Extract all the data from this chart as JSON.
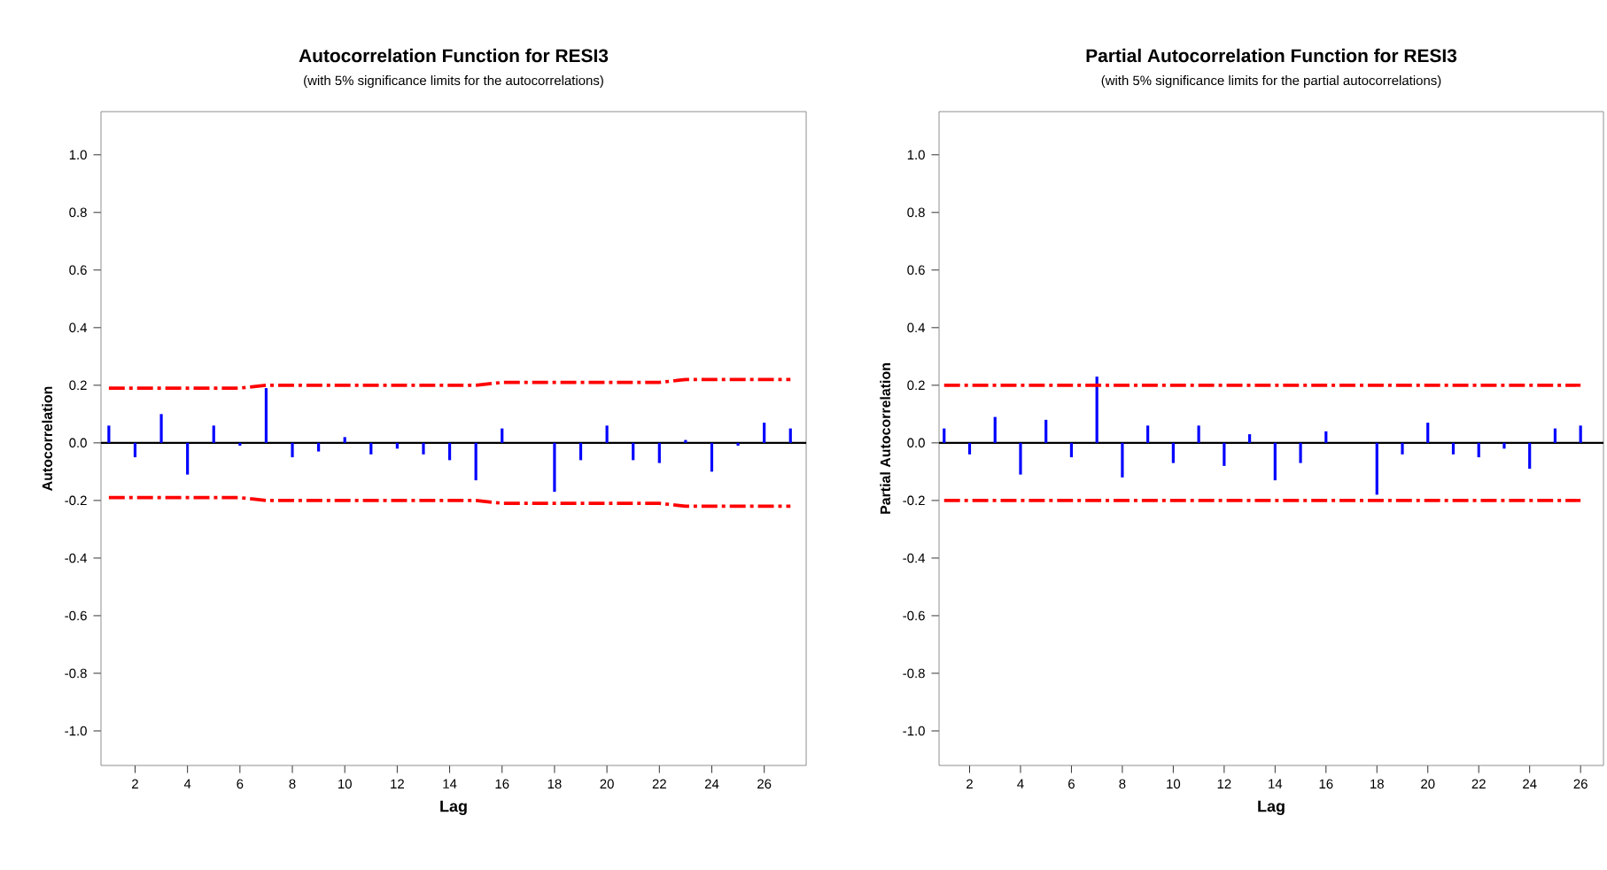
{
  "chart_data": [
    {
      "type": "bar",
      "title": "Autocorrelation Function for RESI3",
      "subtitle": "(with 5% significance limits for the autocorrelations)",
      "xlabel": "Lag",
      "ylabel": "Autocorrelation",
      "x": [
        1,
        2,
        3,
        4,
        5,
        6,
        7,
        8,
        9,
        10,
        11,
        12,
        13,
        14,
        15,
        16,
        17,
        18,
        19,
        20,
        21,
        22,
        23,
        24,
        25,
        26,
        27
      ],
      "series": [
        {
          "color": "#0000ff",
          "values": [
            0.06,
            -0.05,
            0.1,
            -0.11,
            0.06,
            -0.01,
            0.19,
            -0.05,
            -0.03,
            0.02,
            -0.04,
            -0.02,
            -0.04,
            -0.06,
            -0.13,
            0.05,
            0.0,
            -0.17,
            -0.06,
            0.06,
            -0.06,
            -0.07,
            0.01,
            -0.1,
            -0.01,
            0.07,
            0.05
          ]
        },
        {
          "type": "line",
          "color": "#ff0000",
          "line_style": "dashed",
          "values": [
            0.19,
            0.19,
            0.19,
            0.19,
            0.19,
            0.19,
            0.2,
            0.2,
            0.2,
            0.2,
            0.2,
            0.2,
            0.2,
            0.2,
            0.2,
            0.21,
            0.21,
            0.21,
            0.21,
            0.21,
            0.21,
            0.21,
            0.22,
            0.22,
            0.22,
            0.22,
            0.22
          ]
        },
        {
          "type": "line",
          "color": "#ff0000",
          "line_style": "dashed",
          "values": [
            -0.19,
            -0.19,
            -0.19,
            -0.19,
            -0.19,
            -0.19,
            -0.2,
            -0.2,
            -0.2,
            -0.2,
            -0.2,
            -0.2,
            -0.2,
            -0.2,
            -0.2,
            -0.21,
            -0.21,
            -0.21,
            -0.21,
            -0.21,
            -0.21,
            -0.21,
            -0.22,
            -0.22,
            -0.22,
            -0.22,
            -0.22
          ]
        }
      ],
      "ref_lines": [
        {
          "axis": "y",
          "value": 0,
          "color": "#000000"
        }
      ],
      "xlim": [
        0.7,
        27.6
      ],
      "xticks": [
        2,
        4,
        6,
        8,
        10,
        12,
        14,
        16,
        18,
        20,
        22,
        24,
        26
      ],
      "ylim": [
        -1.12,
        1.15
      ],
      "yticks": [
        {
          "value": -1,
          "label": "-1.0"
        },
        {
          "value": -0.8,
          "label": "-0.8"
        },
        {
          "value": -0.6,
          "label": "-0.6"
        },
        {
          "value": -0.4,
          "label": "-0.4"
        },
        {
          "value": -0.2,
          "label": "-0.2"
        },
        {
          "value": 0,
          "label": "0.0"
        },
        {
          "value": 0.2,
          "label": "0.2"
        },
        {
          "value": 0.4,
          "label": "0.4"
        },
        {
          "value": 0.6,
          "label": "0.6"
        },
        {
          "value": 0.8,
          "label": "0.8"
        },
        {
          "value": 1,
          "label": "1.0"
        }
      ]
    },
    {
      "type": "bar",
      "title": "Partial Autocorrelation Function for RESI3",
      "subtitle": "(with 5% significance limits for the partial autocorrelations)",
      "xlabel": "Lag",
      "ylabel": "Partial Autocorrelation",
      "x": [
        1,
        2,
        3,
        4,
        5,
        6,
        7,
        8,
        9,
        10,
        11,
        12,
        13,
        14,
        15,
        16,
        17,
        18,
        19,
        20,
        21,
        22,
        23,
        24,
        25,
        26
      ],
      "series": [
        {
          "color": "#0000ff",
          "values": [
            0.05,
            -0.04,
            0.09,
            -0.11,
            0.08,
            -0.05,
            0.23,
            -0.12,
            0.06,
            -0.07,
            0.06,
            -0.08,
            0.03,
            -0.13,
            -0.07,
            0.04,
            0.0,
            -0.18,
            -0.04,
            0.07,
            -0.04,
            -0.05,
            -0.02,
            -0.09,
            0.05,
            0.06
          ]
        },
        {
          "type": "line",
          "color": "#ff0000",
          "line_style": "dashed",
          "values": [
            0.2,
            0.2,
            0.2,
            0.2,
            0.2,
            0.2,
            0.2,
            0.2,
            0.2,
            0.2,
            0.2,
            0.2,
            0.2,
            0.2,
            0.2,
            0.2,
            0.2,
            0.2,
            0.2,
            0.2,
            0.2,
            0.2,
            0.2,
            0.2,
            0.2,
            0.2
          ]
        },
        {
          "type": "line",
          "color": "#ff0000",
          "line_style": "dashed",
          "values": [
            -0.2,
            -0.2,
            -0.2,
            -0.2,
            -0.2,
            -0.2,
            -0.2,
            -0.2,
            -0.2,
            -0.2,
            -0.2,
            -0.2,
            -0.2,
            -0.2,
            -0.2,
            -0.2,
            -0.2,
            -0.2,
            -0.2,
            -0.2,
            -0.2,
            -0.2,
            -0.2,
            -0.2,
            -0.2,
            -0.2
          ]
        }
      ],
      "ref_lines": [
        {
          "axis": "y",
          "value": 0,
          "color": "#000000"
        }
      ],
      "xlim": [
        0.8,
        26.9
      ],
      "xticks": [
        2,
        4,
        6,
        8,
        10,
        12,
        14,
        16,
        18,
        20,
        22,
        24,
        26
      ],
      "ylim": [
        -1.12,
        1.15
      ],
      "yticks": [
        {
          "value": -1,
          "label": "-1.0"
        },
        {
          "value": -0.8,
          "label": "-0.8"
        },
        {
          "value": -0.6,
          "label": "-0.6"
        },
        {
          "value": -0.4,
          "label": "-0.4"
        },
        {
          "value": -0.2,
          "label": "-0.2"
        },
        {
          "value": 0,
          "label": "0.0"
        },
        {
          "value": 0.2,
          "label": "0.2"
        },
        {
          "value": 0.4,
          "label": "0.4"
        },
        {
          "value": 0.6,
          "label": "0.6"
        },
        {
          "value": 0.8,
          "label": "0.8"
        },
        {
          "value": 1,
          "label": "1.0"
        }
      ]
    }
  ]
}
